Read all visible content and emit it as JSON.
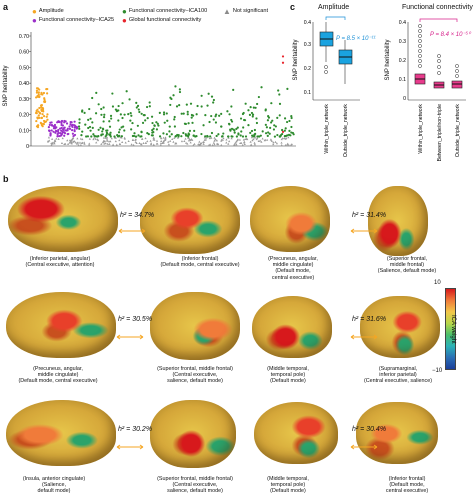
{
  "panel_a": {
    "letter": "a",
    "legend": {
      "amplitude": "Amplitude",
      "ica25": "Functional connectivity–ICA25",
      "ica100": "Functional connectivity–ICA100",
      "global": "Global functional connectivity",
      "ns": "Not significant"
    },
    "colors": {
      "amplitude": "#f5a623",
      "ica25": "#9b2fc9",
      "ica100": "#2e8b2e",
      "global": "#e8232b",
      "ns": "#9a9a9a"
    },
    "ylabel": "SNP heritability",
    "yticks": [
      "0",
      "0.10",
      "0.20",
      "0.30",
      "0.40",
      "0.50",
      "0.60",
      "0.70"
    ]
  },
  "panel_c": {
    "letter": "c",
    "left": {
      "title": "Amplitude",
      "ylabel": "SNP heritability",
      "yticks": [
        "0.1",
        "0.2",
        "0.3",
        "0.4"
      ],
      "categories": [
        "Within_triple_network",
        "Outside_triple_network"
      ],
      "pvalue": "P = 8.5 × 10⁻¹¹"
    },
    "right": {
      "title": "Functional connectivity",
      "ylabel": "SNP heritability",
      "yticks": [
        "0",
        "0.1",
        "0.2",
        "0.3",
        "0.4"
      ],
      "categories": [
        "Within_triple_network",
        "Between_triple/non-triple",
        "Outside_triple_network"
      ],
      "pvalue": "P = 8.4 × 10⁻⁵⁰"
    }
  },
  "panel_b": {
    "letter": "b",
    "rows": [
      {
        "h2": "h² = 34.7%",
        "left": [
          "(Inferior parietal, angular)",
          "(Central executive, attention)"
        ],
        "right": [
          "(Inferior frontal)",
          "(Default mode, central executive)"
        ]
      },
      {
        "h2": "h² = 31.4%",
        "left": [
          "(Precuneus, angular,",
          "middle cingulate)",
          "(Default mode,",
          "central executive)"
        ],
        "right": [
          "(Superior frontal,",
          "middle frontal)",
          "(Salience, default mode)"
        ]
      },
      {
        "h2": "h² = 30.5%",
        "left": [
          "(Precuneus, angular,",
          "middle cingulate)",
          "(Default mode, central executive)"
        ],
        "right": [
          "(Superior frontal, middle frontal)",
          "(Central executive,",
          "salience, default mode)"
        ]
      },
      {
        "h2": "h² = 31.6%",
        "left": [
          "(Middle temporal,",
          "temporal pole)",
          "(Default mode)"
        ],
        "right": [
          "(Supramarginal,",
          "inferior parietal)",
          "(Central executive, salience)"
        ]
      },
      {
        "h2": "h² = 30.2%",
        "left": [
          "(Insula, anterior cingulate)",
          "(Salience,",
          "default mode)"
        ],
        "right": [
          "(Superior frontal, middle frontal)",
          "(Central executive,",
          "salience, default mode)"
        ]
      },
      {
        "h2": "h² = 30.4%",
        "left": [
          "(Middle temporal,",
          "temporal pole)",
          "(Default mode)"
        ],
        "right": [
          "(Inferior frontal)",
          "(Default mode,",
          "central executive)"
        ]
      }
    ],
    "colorbar": {
      "title": "ICA weight",
      "max": "10",
      "min": "−10"
    }
  }
}
